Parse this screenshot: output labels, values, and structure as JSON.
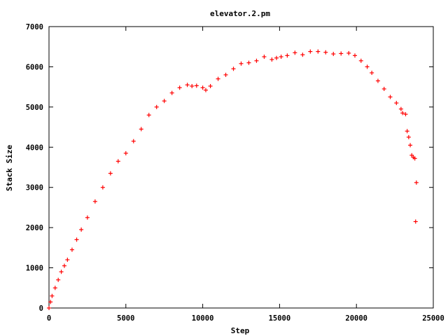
{
  "chart_data": {
    "type": "scatter",
    "title": "elevator.2.pm",
    "xlabel": "Step",
    "ylabel": "Stack Size",
    "xlim": [
      0,
      25000
    ],
    "ylim": [
      0,
      7000
    ],
    "xticks": [
      0,
      5000,
      10000,
      15000,
      20000,
      25000
    ],
    "yticks": [
      0,
      1000,
      2000,
      3000,
      4000,
      5000,
      6000,
      7000
    ],
    "grid": false,
    "legend": "none",
    "marker": "+",
    "color": "#ff0000",
    "series": [
      {
        "x": [
          0,
          100,
          200,
          400,
          600,
          800,
          1000,
          1200,
          1500,
          1800,
          2100,
          2500,
          3000,
          3500,
          4000,
          4500,
          5000,
          5500,
          6000,
          6500,
          7000,
          7500,
          8000,
          8500,
          9000,
          9300,
          9600,
          10000,
          10200,
          10500,
          11000,
          11500,
          12000,
          12500,
          13000,
          13500,
          14000,
          14500,
          14800,
          15100,
          15500,
          16000,
          16500,
          17000,
          17500,
          18000,
          18500,
          19000,
          19500,
          19900,
          20300,
          20700,
          21000,
          21400,
          21800,
          22200,
          22600,
          22900,
          23000,
          23200,
          23300,
          23400,
          23500,
          23600,
          23700,
          23800,
          23900
        ],
        "y": [
          0,
          150,
          300,
          500,
          700,
          900,
          1050,
          1200,
          1450,
          1700,
          1950,
          2250,
          2650,
          3000,
          3350,
          3650,
          3850,
          4150,
          4450,
          4800,
          5000,
          5150,
          5350,
          5480,
          5550,
          5520,
          5530,
          5480,
          5420,
          5520,
          5700,
          5800,
          5950,
          6080,
          6100,
          6150,
          6250,
          6180,
          6220,
          6250,
          6280,
          6350,
          6300,
          6380,
          6380,
          6360,
          6320,
          6330,
          6340,
          6280,
          6150,
          6000,
          5850,
          5650,
          5450,
          5250,
          5100,
          4950,
          4850,
          4820,
          4400,
          4250,
          4050,
          3800,
          3750,
          3720,
          3120
        ]
      },
      {
        "x": [
          23850
        ],
        "y": [
          2150
        ]
      }
    ]
  }
}
